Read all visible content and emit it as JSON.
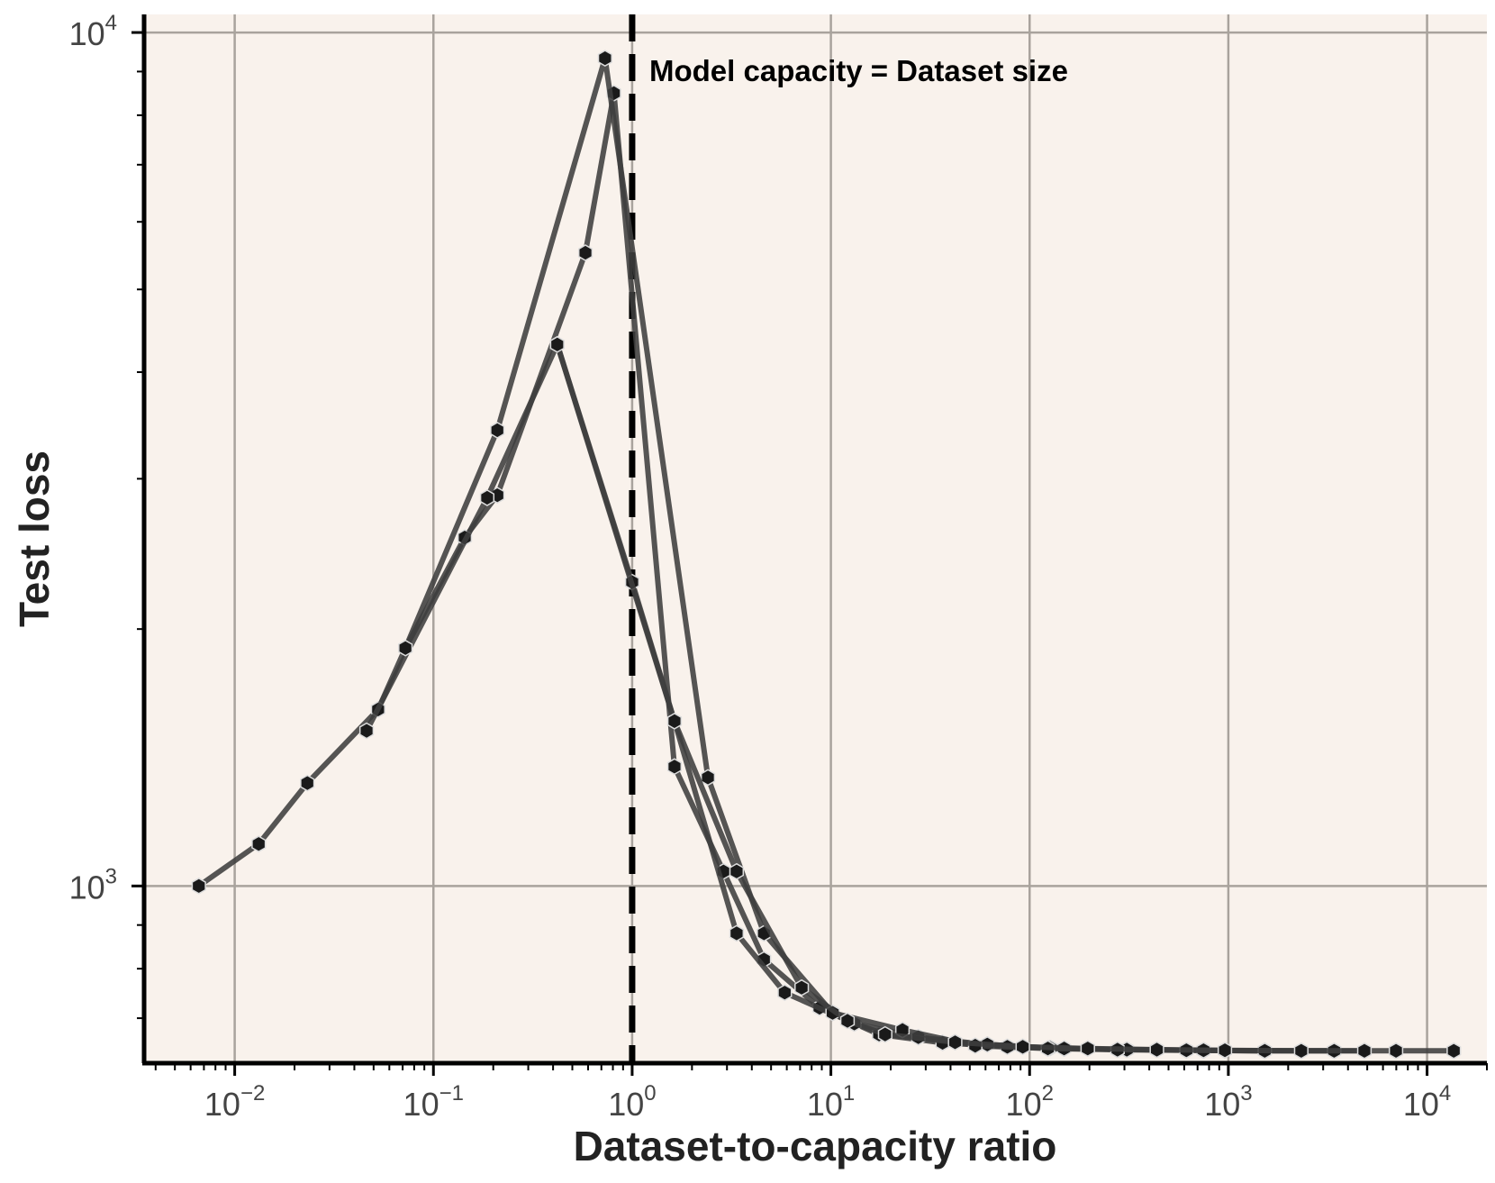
{
  "chart_data": {
    "type": "line",
    "title": "",
    "xlabel": "Dataset-to-capacity ratio",
    "ylabel": "Test loss",
    "x_scale": "log",
    "y_scale": "log",
    "xlim": [
      0.0035,
      20000
    ],
    "ylim": [
      620,
      10500
    ],
    "grid": true,
    "x_ticks": [
      {
        "base": "10",
        "exp": "−2",
        "value": 0.01
      },
      {
        "base": "10",
        "exp": "−1",
        "value": 0.1
      },
      {
        "base": "10",
        "exp": "0",
        "value": 1
      },
      {
        "base": "10",
        "exp": "1",
        "value": 10
      },
      {
        "base": "10",
        "exp": "2",
        "value": 100
      },
      {
        "base": "10",
        "exp": "3",
        "value": 1000
      },
      {
        "base": "10",
        "exp": "4",
        "value": 10000
      }
    ],
    "y_ticks": [
      {
        "base": "10",
        "exp": "3",
        "value": 1000
      },
      {
        "base": "10",
        "exp": "4",
        "value": 10000
      }
    ],
    "vline": {
      "x": 1,
      "label": "Model capacity = Dataset size",
      "style": "dashed"
    },
    "series": [
      {
        "x": [
          0.0066,
          0.0132,
          0.0232,
          0.0527,
          0.0723,
          0.1437,
          0.2097,
          0.5819,
          0.8093,
          1.6331,
          2.8805,
          4.6043,
          8.7658,
          17.4855,
          36.4812,
          77.2581,
          149.1824,
          308.3368,
          750.1001,
          1524.9036,
          3407.8212,
          6975.7612,
          13629.5284
        ],
        "y": [
          1000,
          1120,
          1320,
          1610,
          1900,
          2560,
          2870,
          5520,
          8490,
          1380,
          1040,
          820,
          720,
          670,
          655,
          648,
          645,
          643,
          642,
          641,
          641,
          641,
          641
        ]
      },
      {
        "x": [
          0.0461,
          0.1864,
          0.4199,
          1.0,
          1.6331,
          3.3537,
          5.8578,
          13.1218,
          27.5396,
          61.2497,
          126.9262,
          308.3368,
          750.1001,
          1524.9036,
          3407.8212
        ],
        "y": [
          1520,
          2850,
          4310,
          2270,
          1560,
          880,
          750,
          690,
          665,
          652,
          646,
          643,
          642,
          641,
          641
        ]
      },
      {
        "x": [
          0.0723,
          0.2097,
          0.7306,
          2.4059,
          4.6043,
          10.2029,
          22.9174,
          53.2609,
          123.5881,
          276.8309,
          614.9254,
          1524.9036
        ],
        "y": [
          1900,
          3420,
          9330,
          1340,
          880,
          710,
          678,
          650,
          645,
          643,
          642,
          641
        ]
      },
      {
        "x": [
          0.4199,
          1.6331,
          3.3537,
          7.1259,
          12.1174,
          18.7536,
          42.1739,
          92.3387,
          196.1346,
          436.7164,
          960.5051,
          2327.2201,
          4838.0952
        ],
        "y": [
          4310,
          1560,
          1040,
          760,
          695,
          670,
          656,
          648,
          645,
          643,
          642,
          641,
          641
        ]
      }
    ]
  }
}
